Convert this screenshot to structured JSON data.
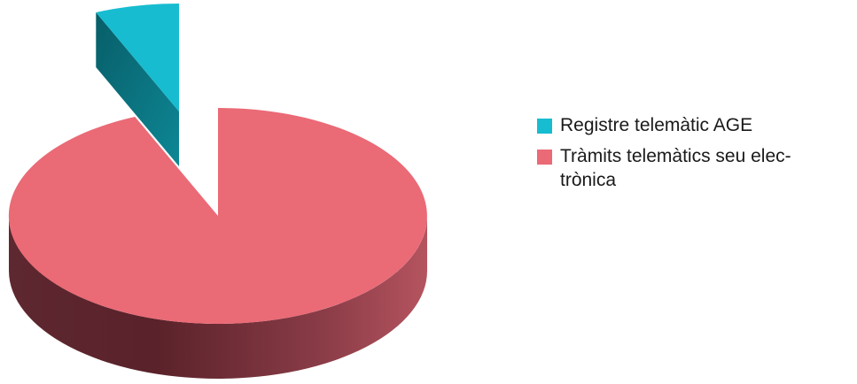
{
  "chart_data": {
    "type": "pie",
    "style": "3d-exploded",
    "legend_position": "right",
    "slices": [
      {
        "label": "Registre telemàtic AGE",
        "value": 6.5,
        "color": "#17bcd0"
      },
      {
        "label": "Tràmits telemàtics seu elec-trònica",
        "value": 93.5,
        "color": "#ea6a76"
      }
    ]
  },
  "legend": {
    "items": [
      {
        "label": "Registre telemàtic AGE",
        "color": "#17bcd0"
      },
      {
        "label": "Tràmits telemàtics seu elec-\ntrònica",
        "color": "#ea6a76"
      }
    ]
  }
}
